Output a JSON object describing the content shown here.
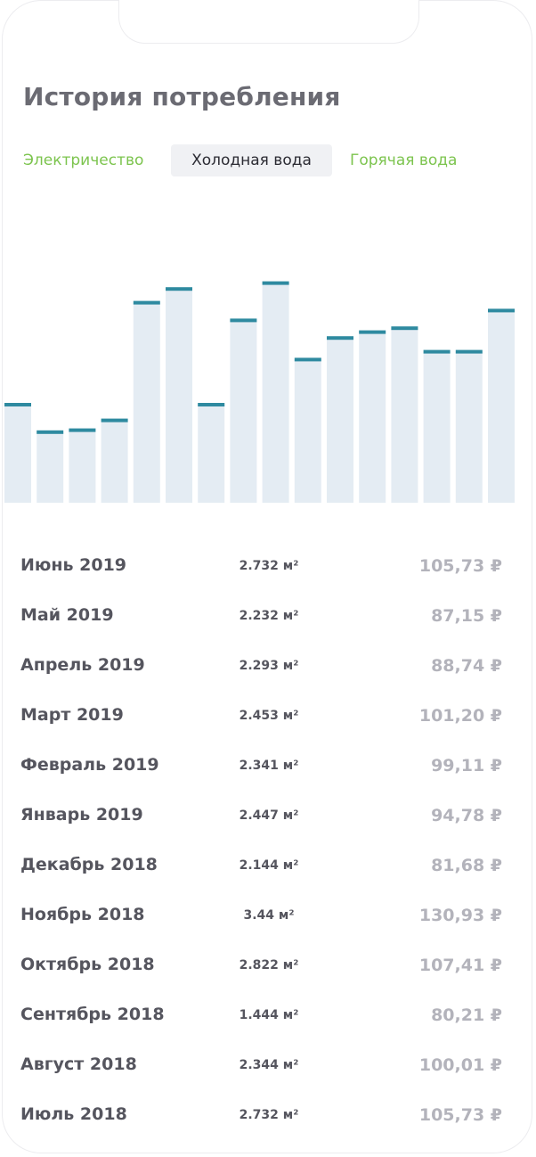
{
  "header": {
    "title": "История потребления"
  },
  "tabs": [
    {
      "label": "Электричество",
      "active": false
    },
    {
      "label": "Холодная вода",
      "active": true
    },
    {
      "label": "Горячая вода",
      "active": false
    }
  ],
  "colors": {
    "accent_green": "#7cc44e",
    "bar_fill": "#e4ecf3",
    "bar_cap": "#2e8aa0",
    "active_tab_bg": "#f0f1f4"
  },
  "chart_data": {
    "type": "bar",
    "values": [
      2.5,
      1.8,
      1.85,
      2.1,
      5.1,
      5.45,
      2.5,
      4.65,
      5.6,
      3.65,
      4.2,
      4.35,
      4.45,
      3.85,
      3.85,
      4.9
    ],
    "ylim": [
      0,
      6.0
    ],
    "grid": false,
    "legend": "none"
  },
  "history": [
    {
      "period": "Июнь 2019",
      "volume": "2.732 м²",
      "amount": "105,73 ₽"
    },
    {
      "period": "Май 2019",
      "volume": "2.232 м²",
      "amount": "87,15 ₽"
    },
    {
      "period": "Апрель 2019",
      "volume": "2.293 м²",
      "amount": "88,74 ₽"
    },
    {
      "period": "Март 2019",
      "volume": "2.453 м²",
      "amount": "101,20 ₽"
    },
    {
      "period": "Февраль 2019",
      "volume": "2.341 м²",
      "amount": "99,11 ₽"
    },
    {
      "period": "Январь 2019",
      "volume": "2.447 м²",
      "amount": "94,78 ₽"
    },
    {
      "period": "Декабрь 2018",
      "volume": "2.144 м²",
      "amount": "81,68 ₽"
    },
    {
      "period": "Ноябрь 2018",
      "volume": "3.44 м²",
      "amount": "130,93 ₽"
    },
    {
      "period": "Октябрь 2018",
      "volume": "2.822 м²",
      "amount": "107,41 ₽"
    },
    {
      "period": "Сентябрь 2018",
      "volume": "1.444 м²",
      "amount": "80,21 ₽"
    },
    {
      "period": "Август 2018",
      "volume": "2.344 м²",
      "amount": "100,01 ₽"
    },
    {
      "period": "Июль 2018",
      "volume": "2.732 м²",
      "amount": "105,73 ₽"
    }
  ]
}
